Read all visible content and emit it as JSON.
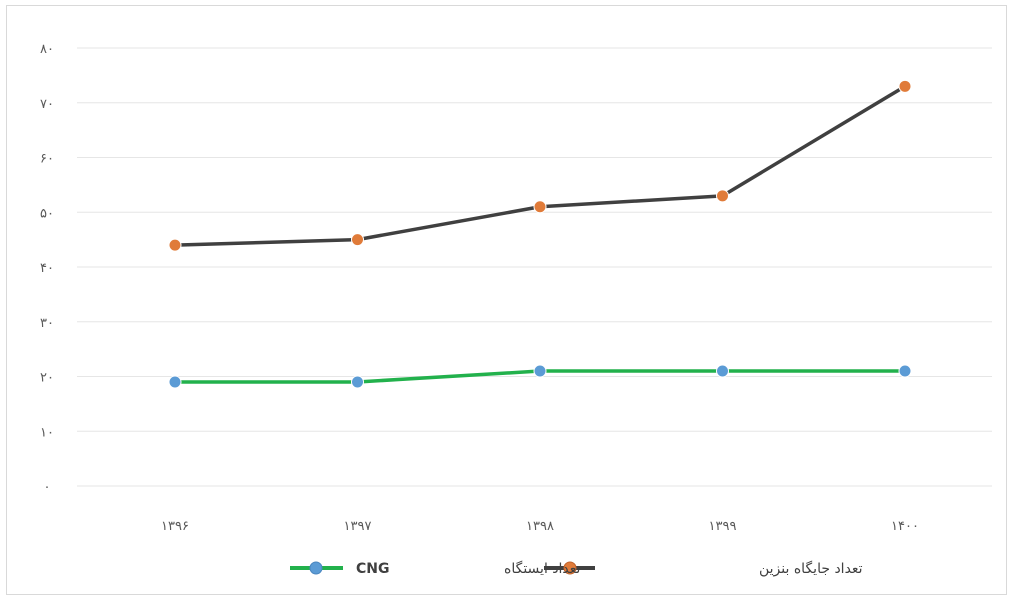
{
  "chart_data": {
    "type": "line",
    "categories": [
      "۱۳۹۶",
      "۱۳۹۷",
      "۱۳۹۸",
      "۱۳۹۹",
      "۱۴۰۰"
    ],
    "series": [
      {
        "name": "تعداد جایگاه بنزین",
        "values": [
          44,
          45,
          51,
          53,
          73
        ],
        "color": "#404040",
        "marker_color": "#e07b39"
      },
      {
        "name": "تعداد ایستگاه CNG",
        "values": [
          19,
          19,
          21,
          21,
          21
        ],
        "color": "#22b14c",
        "marker_color": "#5b9bd5"
      }
    ],
    "y_ticks": [
      "۰",
      "۱۰",
      "۲۰",
      "۳۰",
      "۴۰",
      "۵۰",
      "۶۰",
      "۷۰",
      "۸۰"
    ],
    "ylim": [
      0,
      80
    ],
    "grid": true,
    "legend_position": "bottom",
    "title": "",
    "xlabel": "",
    "ylabel": ""
  },
  "legend": {
    "gasoline_label": "تعداد جایگاه بنزین",
    "cng_label_prefix": "تعداد ایستگاه",
    "cng_label_suffix": "CNG"
  }
}
